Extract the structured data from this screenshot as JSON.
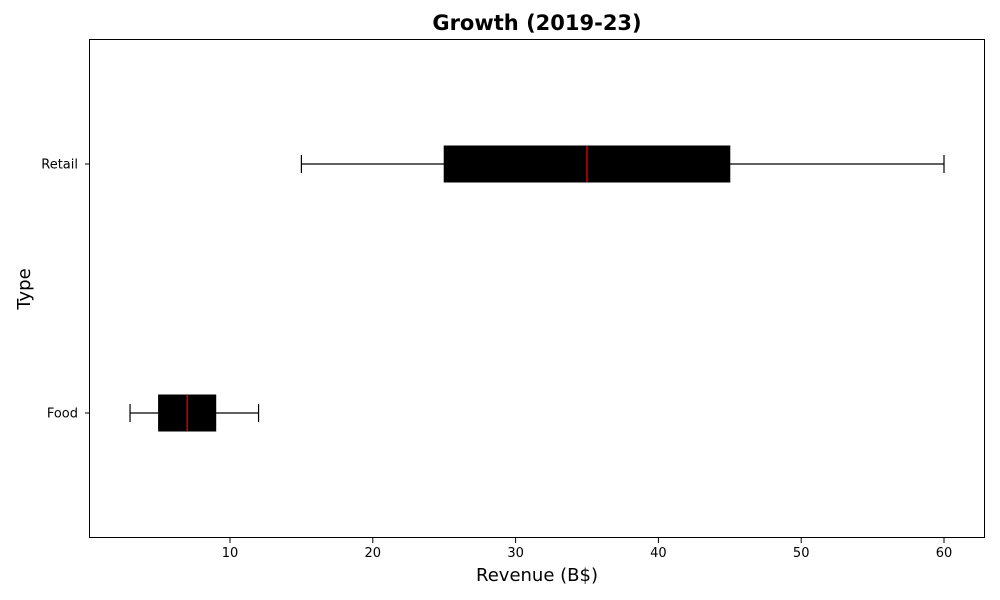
{
  "chart_data": {
    "type": "boxplot",
    "orientation": "horizontal",
    "title": "Growth (2019-23)",
    "xlabel": "Revenue (B$)",
    "ylabel": "Type",
    "xlim": [
      0,
      63
    ],
    "xticks": [
      10,
      20,
      30,
      40,
      50,
      60
    ],
    "categories": [
      "Food",
      "Retail"
    ],
    "boxes": [
      {
        "name": "Food",
        "whisker_low": 3,
        "q1": 5,
        "median": 7,
        "q3": 9,
        "whisker_high": 12
      },
      {
        "name": "Retail",
        "whisker_low": 15,
        "q1": 25,
        "median": 35,
        "q3": 45,
        "whisker_high": 60
      }
    ],
    "box_color": "#000000",
    "median_color": "#ff0000",
    "grid": false,
    "legend": "none"
  }
}
